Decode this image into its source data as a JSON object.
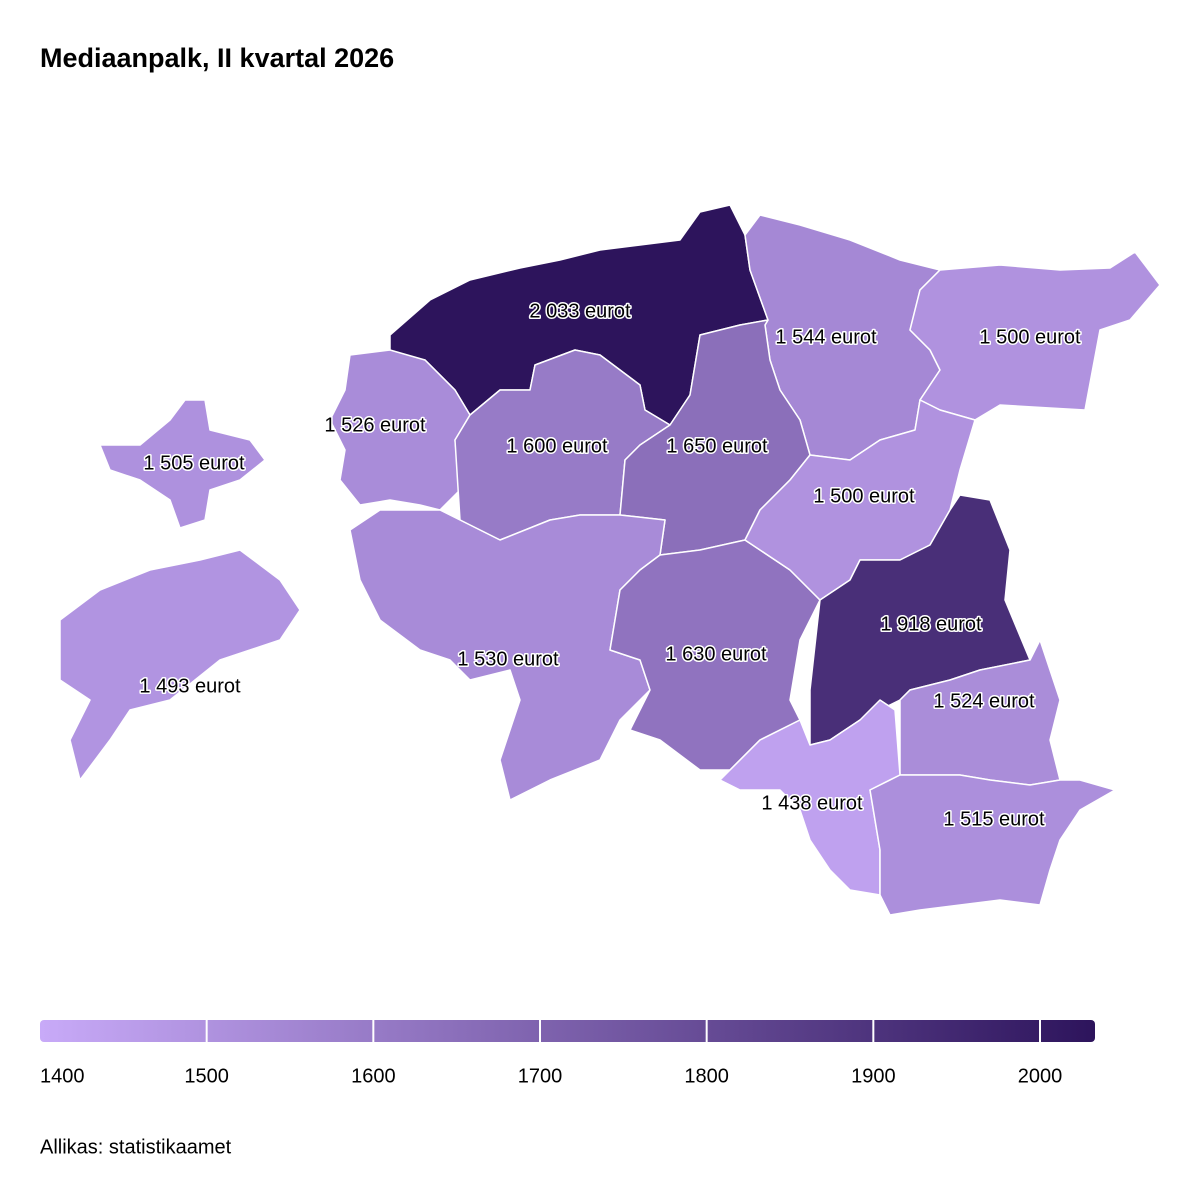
{
  "chart_data": {
    "type": "choropleth",
    "title": "Mediaanpalk, II kvartal 2026",
    "values": [
      2033,
      1544,
      1500,
      1526,
      1505,
      1600,
      1650,
      1493,
      1530,
      1630,
      1500,
      1918,
      1524,
      1438,
      1515
    ],
    "value_labels": [
      "2 033 eurot",
      "1 544 eurot",
      "1 500 eurot",
      "1 526 eurot",
      "1 505 eurot",
      "1 600 eurot",
      "1 650 eurot",
      "1 493 eurot",
      "1 530 eurot",
      "1 630 eurot",
      "1 500 eurot",
      "1 918 eurot",
      "1 524 eurot",
      "1 438 eurot",
      "1 515 eurot"
    ],
    "colorbar_range": [
      1400,
      2033
    ],
    "colorbar_ticks": [
      1400,
      1500,
      1600,
      1700,
      1800,
      1900,
      2000
    ],
    "colors": [
      "#c8aaf8",
      "#2d145c"
    ],
    "source": "Allikas: statistikaamet"
  }
}
